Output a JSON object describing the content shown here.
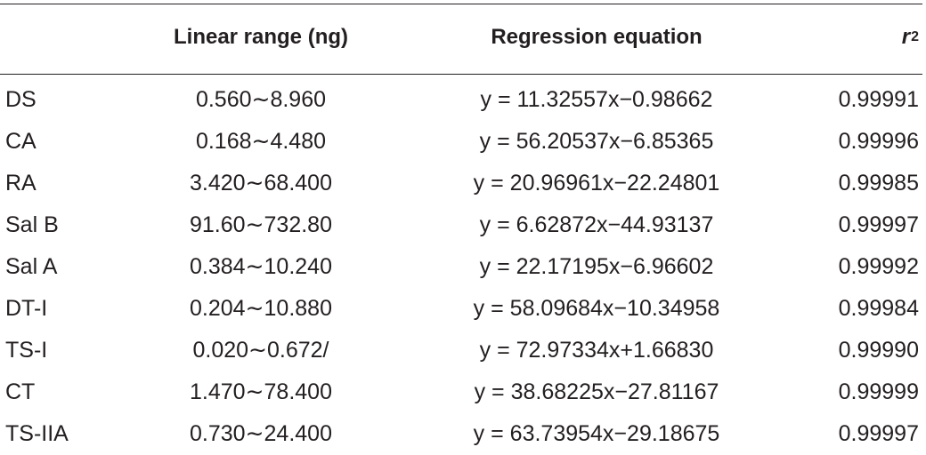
{
  "table": {
    "headers": {
      "compound": "",
      "linear_range": "Linear range (ng)",
      "regression": "Regression equation",
      "r_base": "r",
      "r_exp": "2"
    },
    "rows": [
      {
        "compound": "DS",
        "range": "0.560∼8.960",
        "equation": "y = 11.32557x−0.98662",
        "r2": "0.99991"
      },
      {
        "compound": "CA",
        "range": "0.168∼4.480",
        "equation": "y = 56.20537x−6.85365",
        "r2": "0.99996"
      },
      {
        "compound": "RA",
        "range": "3.420∼68.400",
        "equation": "y = 20.96961x−22.24801",
        "r2": "0.99985"
      },
      {
        "compound": "Sal B",
        "range": "91.60∼732.80",
        "equation": "y = 6.62872x−44.93137",
        "r2": "0.99997"
      },
      {
        "compound": "Sal A",
        "range": "0.384∼10.240",
        "equation": "y = 22.17195x−6.96602",
        "r2": "0.99992"
      },
      {
        "compound": "DT-I",
        "range": "0.204∼10.880",
        "equation": "y = 58.09684x−10.34958",
        "r2": "0.99984"
      },
      {
        "compound": "TS-I",
        "range": "0.020∼0.672/",
        "equation": "y = 72.97334x+1.66830",
        "r2": "0.99990"
      },
      {
        "compound": "CT",
        "range": "1.470∼78.400",
        "equation": "y = 38.68225x−27.81167",
        "r2": "0.99999"
      },
      {
        "compound": "TS-IIA",
        "range": "0.730∼24.400",
        "equation": "y = 63.73954x−29.18675",
        "r2": "0.99997"
      }
    ]
  }
}
